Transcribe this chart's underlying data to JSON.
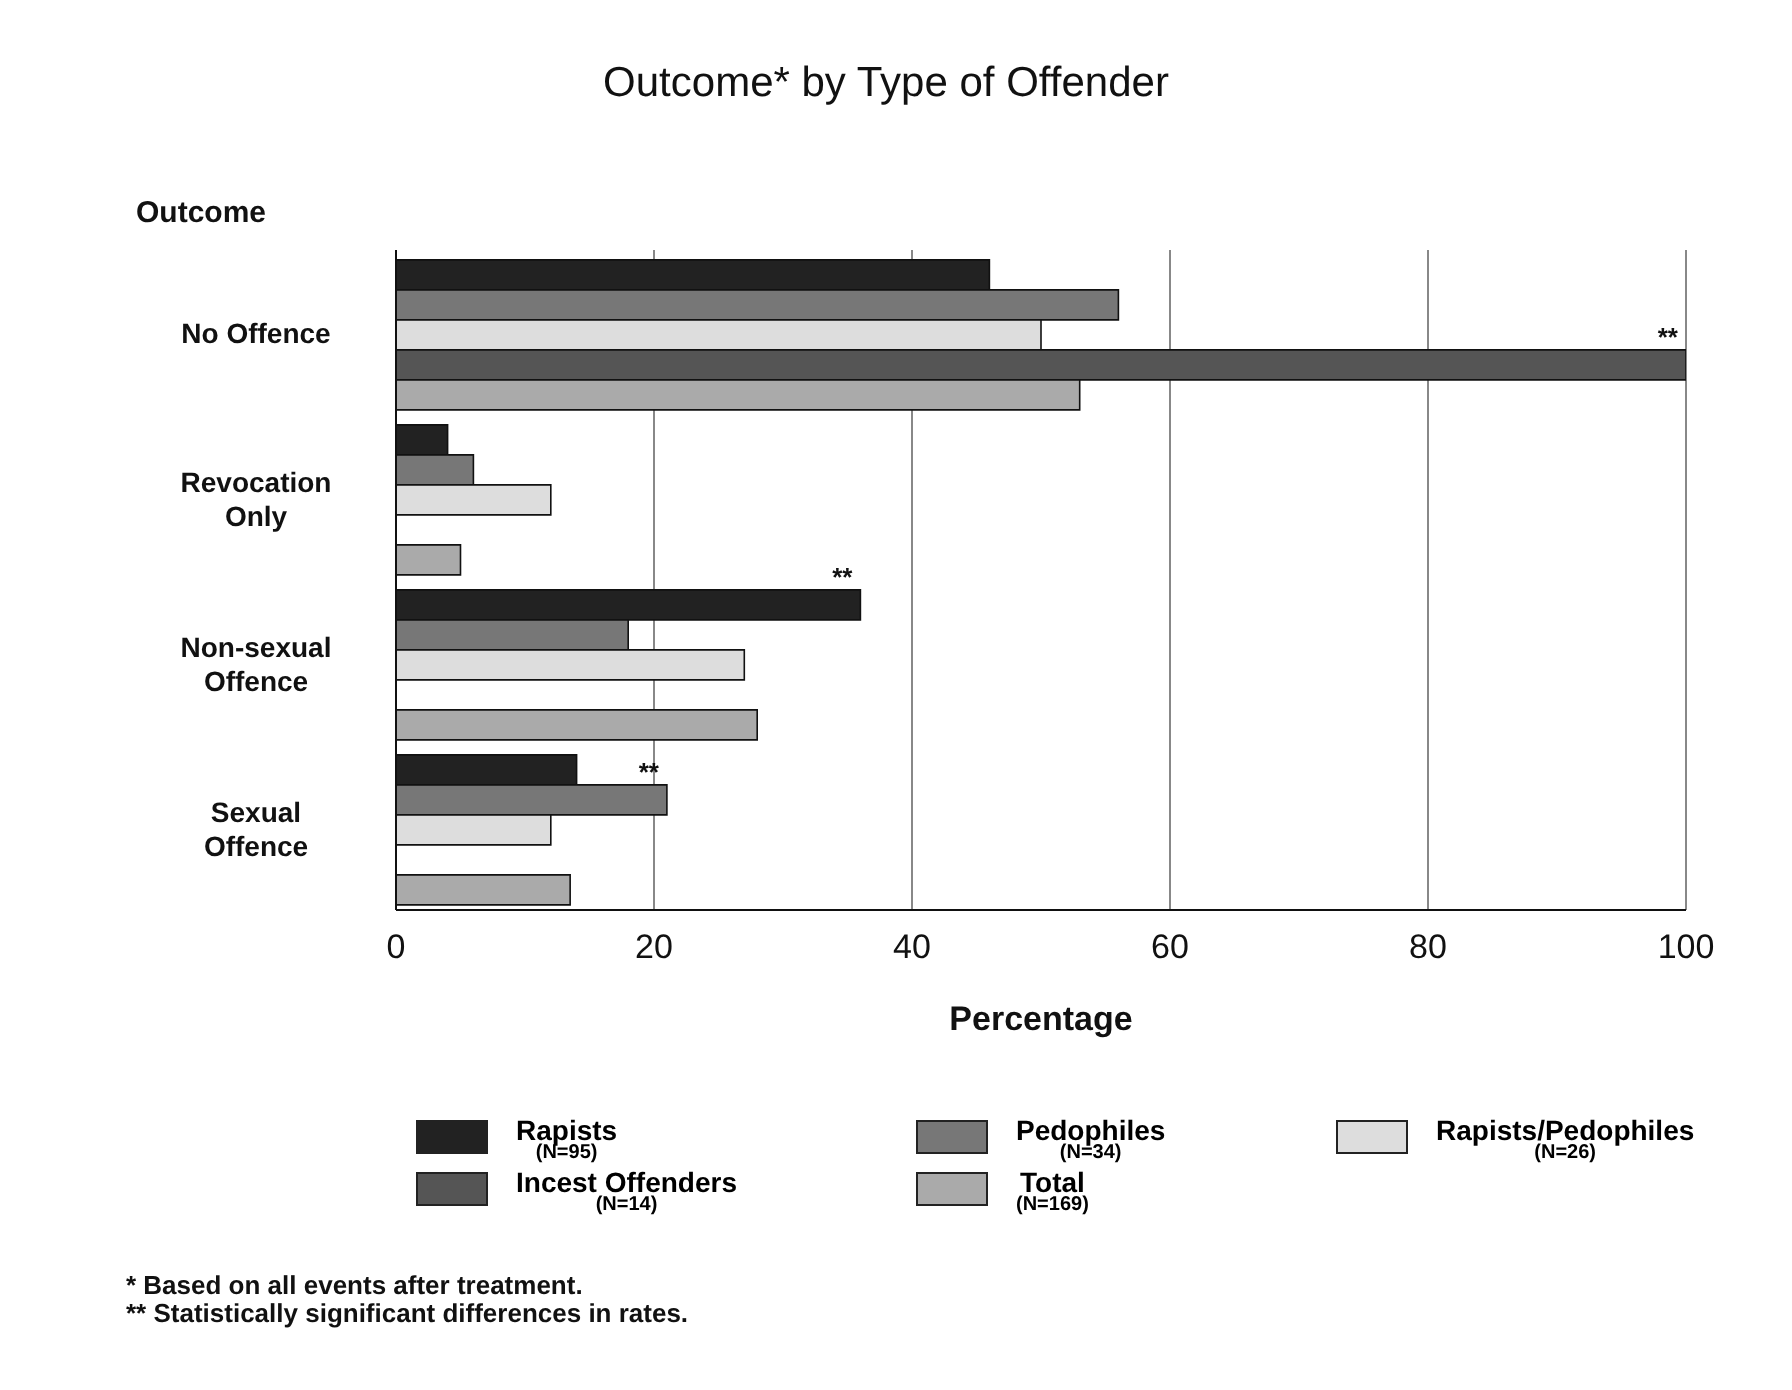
{
  "chart_data": {
    "type": "bar",
    "orientation": "horizontal",
    "title": "Outcome* by Type of Offender",
    "ylabel": "Outcome",
    "xlabel": "Percentage",
    "categories": [
      "No Offence",
      "Revocation Only",
      "Non-sexual Offence",
      "Sexual Offence"
    ],
    "series": [
      {
        "name": "Rapists (N=95)",
        "color": "#222222",
        "values": [
          46,
          4,
          36,
          14
        ],
        "value_labels": [
          null,
          null,
          "**",
          null
        ]
      },
      {
        "name": "Pedophiles (N=34)",
        "color": "#777777",
        "values": [
          56,
          6,
          18,
          21
        ],
        "value_labels": [
          null,
          null,
          null,
          "**"
        ]
      },
      {
        "name": "Rapists/Pedophiles (N=26)",
        "color": "#dddddd",
        "values": [
          50,
          12,
          27,
          12
        ]
      },
      {
        "name": "Incest Offenders (N=14)",
        "color": "#555555",
        "values": [
          100,
          0,
          0,
          0
        ],
        "value_labels": [
          "**",
          null,
          null,
          null
        ]
      },
      {
        "name": "Total (N=169)",
        "color": "#aaaaaa",
        "values": [
          53,
          5,
          28,
          13.5
        ]
      }
    ],
    "xlim": [
      0,
      100
    ],
    "xticks": [
      0,
      20,
      40,
      60,
      80,
      100
    ],
    "grid": "x",
    "legend": "bottom",
    "annotations": [
      "* Based on all events after treatment.",
      "** Statistically significant differences in rates."
    ]
  }
}
